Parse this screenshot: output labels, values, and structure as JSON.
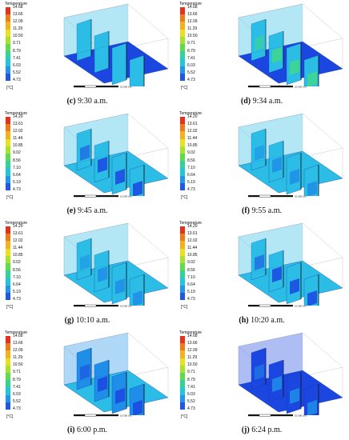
{
  "panels": [
    {
      "letter": "(c)",
      "time": "9:30 a.m.",
      "legend_title": "Temperature",
      "unit": "[°C]",
      "scale_end": "10.000 (m)",
      "ticks": [
        "14.68",
        "13.66",
        "12.09",
        "11.29",
        "10.50",
        "9.71",
        "8.79",
        "7.41",
        "6.03",
        "5.52",
        "4.73"
      ]
    },
    {
      "letter": "(d)",
      "time": "9:34 a.m.",
      "legend_title": "Temperature",
      "unit": "[°C]",
      "scale_end": "10.000 (m)",
      "ticks": [
        "14.68",
        "13.66",
        "12.09",
        "11.29",
        "10.50",
        "9.71",
        "8.79",
        "7.41",
        "6.03",
        "5.52",
        "4.73"
      ]
    },
    {
      "letter": "(e)",
      "time": "9:45 a.m.",
      "legend_title": "Temperature",
      "unit": "[°C]",
      "scale_end": "10.000 (m)",
      "ticks": [
        "14.20",
        "13.61",
        "12.02",
        "11.44",
        "10.85",
        "9.02",
        "8.56",
        "7.10",
        "6.64",
        "5.19",
        "4.73"
      ]
    },
    {
      "letter": "(f)",
      "time": "9:55 a.m.",
      "legend_title": "Temperature",
      "unit": "[°C]",
      "scale_end": "10.000 (m)",
      "ticks": [
        "14.20",
        "13.61",
        "12.02",
        "11.44",
        "10.85",
        "9.02",
        "8.56",
        "7.10",
        "6.64",
        "5.19",
        "4.73"
      ]
    },
    {
      "letter": "(g)",
      "time": "10:10 a.m.",
      "legend_title": "Temperature",
      "unit": "[°C]",
      "scale_end": "10.000 (m)",
      "ticks": [
        "14.20",
        "13.61",
        "12.02",
        "11.44",
        "10.85",
        "9.02",
        "8.56",
        "7.10",
        "6.64",
        "5.19",
        "4.73"
      ]
    },
    {
      "letter": "(h)",
      "time": "10:20 a.m.",
      "legend_title": "Temperature",
      "unit": "[°C]",
      "scale_end": "10.000 (m)",
      "ticks": [
        "14.20",
        "13.61",
        "12.02",
        "11.44",
        "10.85",
        "9.02",
        "8.56",
        "7.10",
        "6.64",
        "5.19",
        "4.73"
      ]
    },
    {
      "letter": "(i)",
      "time": "6:00 p.m.",
      "legend_title": "Temperature",
      "unit": "[°C]",
      "scale_end": "10.000 (m)",
      "ticks": [
        "14.68",
        "13.66",
        "12.09",
        "11.29",
        "10.50",
        "9.71",
        "8.79",
        "7.41",
        "6.03",
        "5.52",
        "4.73"
      ]
    },
    {
      "letter": "(j)",
      "time": "6:24 p.m.",
      "legend_title": "Temperature",
      "unit": "[°C]",
      "scale_end": "10.000 (m)",
      "ticks": [
        "14.68",
        "13.66",
        "12.09",
        "11.29",
        "10.50",
        "9.71",
        "8.79",
        "7.41",
        "6.03",
        "5.52",
        "4.73"
      ]
    }
  ],
  "colormap": [
    "#e8311a",
    "#f07a15",
    "#f5b11a",
    "#e9e21a",
    "#a8e32a",
    "#5fdc4c",
    "#2fd596",
    "#20c7d8",
    "#2196ee",
    "#1f57e6"
  ]
}
